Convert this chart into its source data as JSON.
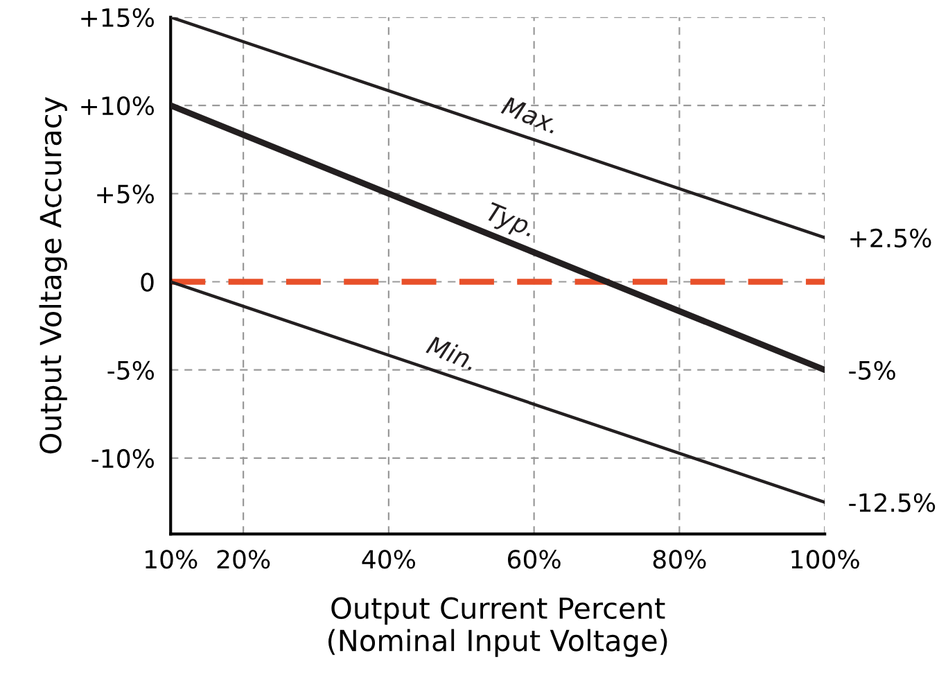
{
  "chart_data": {
    "type": "line",
    "xlabel": "Output Current Percent\n(Nominal Input Voltage)",
    "ylabel": "Output Voltage Accuracy",
    "x": [
      10,
      100
    ],
    "series": [
      {
        "name": "Max.",
        "color": "#231f20",
        "values": [
          15,
          2.5
        ]
      },
      {
        "name": "Typ.",
        "color": "#231f20",
        "values": [
          10,
          -5
        ]
      },
      {
        "name": "Min.",
        "color": "#231f20",
        "values": [
          0,
          -12.5
        ]
      }
    ],
    "xlim": [
      10,
      100
    ],
    "ylim": [
      -14.3,
      15
    ],
    "xticks": [
      {
        "value": 10,
        "label": "10%"
      },
      {
        "value": 20,
        "label": "20%"
      },
      {
        "value": 40,
        "label": "40%"
      },
      {
        "value": 60,
        "label": "60%"
      },
      {
        "value": 80,
        "label": "80%"
      },
      {
        "value": 100,
        "label": "100%"
      }
    ],
    "yticks": [
      {
        "value": -10,
        "label": "-10%"
      },
      {
        "value": -5,
        "label": "-5%"
      },
      {
        "value": 0,
        "label": "0"
      },
      {
        "value": 5,
        "label": "+5%"
      },
      {
        "value": 10,
        "label": "+10%"
      },
      {
        "value": 15,
        "label": "+15%"
      }
    ],
    "grid": true,
    "legend": false,
    "marker": "none",
    "line_style": "solid",
    "ref_lines": [
      {
        "axis": "y",
        "value": 0,
        "label": null,
        "color": "#e8502a",
        "line_style": "dashed"
      }
    ],
    "y2lim": [
      -14.3,
      15
    ],
    "y2ticks": [
      {
        "value": 2.5,
        "label": "+2.5%"
      },
      {
        "value": -5,
        "label": "-5%"
      },
      {
        "value": -12.5,
        "label": "-12.5%"
      }
    ]
  }
}
